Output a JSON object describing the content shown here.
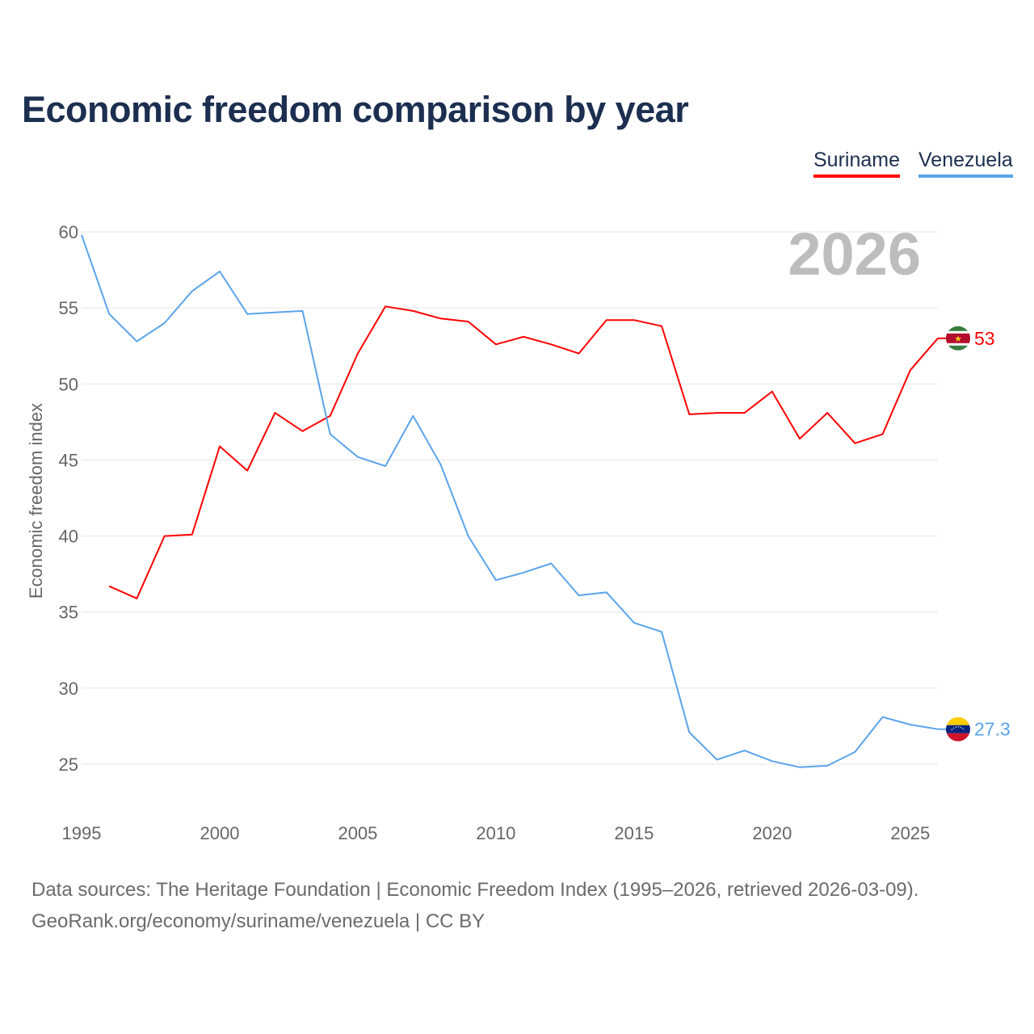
{
  "chart_data": {
    "type": "line",
    "title": "Economic freedom comparison by year",
    "xlabel": "",
    "ylabel": "Economic freedom index",
    "year_label": "2026",
    "xlim": [
      1995,
      2026
    ],
    "ylim": [
      22,
      60
    ],
    "x_ticks": [
      1995,
      2000,
      2005,
      2010,
      2015,
      2020,
      2025
    ],
    "y_ticks": [
      25,
      30,
      35,
      40,
      45,
      50,
      55,
      60
    ],
    "grid": true,
    "legend": "top-right",
    "series": [
      {
        "name": "Suriname",
        "color": "#ff0000",
        "end_label": "53",
        "flag": "suriname-flag",
        "x": [
          1996,
          1997,
          1998,
          1999,
          2000,
          2001,
          2002,
          2003,
          2004,
          2005,
          2006,
          2007,
          2008,
          2009,
          2010,
          2011,
          2012,
          2013,
          2014,
          2015,
          2016,
          2017,
          2018,
          2019,
          2020,
          2021,
          2022,
          2023,
          2024,
          2025,
          2026
        ],
        "values": [
          36.7,
          35.9,
          40.0,
          40.1,
          45.9,
          44.3,
          48.1,
          46.9,
          47.9,
          52.0,
          55.1,
          54.8,
          54.3,
          54.1,
          52.6,
          53.1,
          52.6,
          52.0,
          54.2,
          54.2,
          53.8,
          48.0,
          48.1,
          48.1,
          49.5,
          46.4,
          48.1,
          46.1,
          46.7,
          50.9,
          53.0
        ]
      },
      {
        "name": "Venezuela",
        "color": "#5ba4ea",
        "end_label": "27.3",
        "flag": "venezuela-flag",
        "x": [
          1995,
          1996,
          1997,
          1998,
          1999,
          2000,
          2001,
          2002,
          2003,
          2004,
          2005,
          2006,
          2007,
          2008,
          2009,
          2010,
          2011,
          2012,
          2013,
          2014,
          2015,
          2016,
          2017,
          2018,
          2019,
          2020,
          2021,
          2022,
          2023,
          2024,
          2025,
          2026
        ],
        "values": [
          59.8,
          54.6,
          52.8,
          54.0,
          56.1,
          57.4,
          54.6,
          54.7,
          54.8,
          46.7,
          45.2,
          44.6,
          47.9,
          44.7,
          40.0,
          37.1,
          37.6,
          38.2,
          36.1,
          36.3,
          34.3,
          33.7,
          27.1,
          25.3,
          25.9,
          25.2,
          24.8,
          24.9,
          25.8,
          28.1,
          27.6,
          27.3
        ]
      }
    ]
  },
  "footer": {
    "line1": "Data sources: The Heritage Foundation | Economic Freedom Index (1995–2026, retrieved 2026-03-09).",
    "line2": "GeoRank.org/economy/suriname/venezuela | CC BY"
  }
}
